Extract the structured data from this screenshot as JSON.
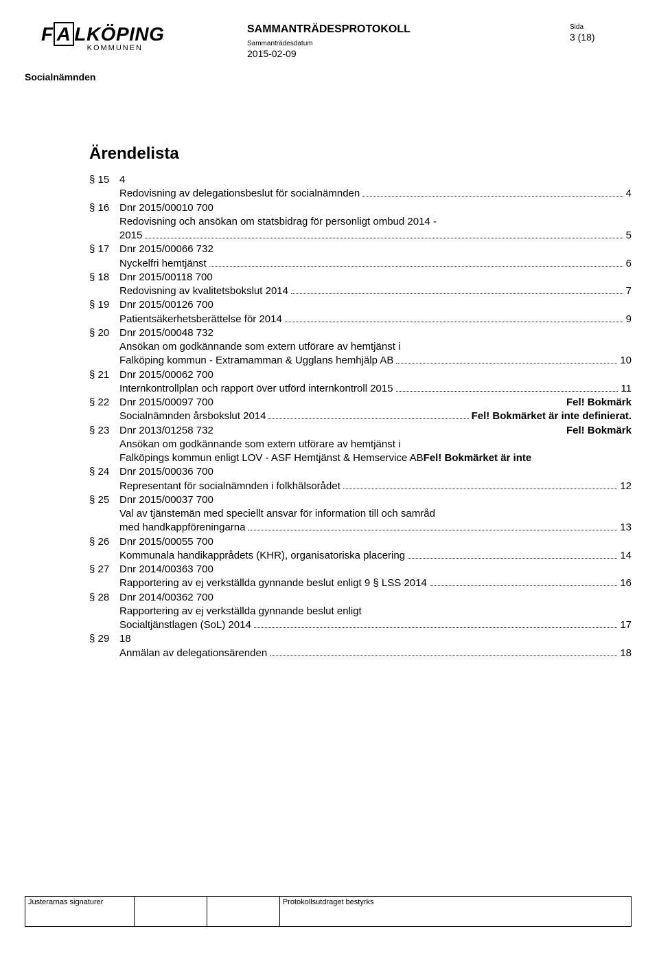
{
  "header": {
    "logo_main_pre": "F",
    "logo_main_a": "A",
    "logo_main_post": "LKÖPING",
    "logo_sub": "KOMMUNEN",
    "protokoll": "SAMMANTRÄDESPROTOKOLL",
    "datum_label": "Sammanträdesdatum",
    "datum": "2015-02-09",
    "sida_label": "Sida",
    "sida": "3 (18)",
    "social": "Socialnämnden"
  },
  "toc_title": "Ärendelista",
  "items": [
    {
      "sec": "§ 15",
      "dnr": "4",
      "title": "Redovisning av delegationsbeslut för socialnämnden",
      "page": "4"
    },
    {
      "sec": "§ 16",
      "dnr": "Dnr 2015/00010 700",
      "title_pre": "Redovisning och ansökan om statsbidrag för personligt ombud 2014 -",
      "title": "2015",
      "page": "5"
    },
    {
      "sec": "§ 17",
      "dnr": "Dnr 2015/00066 732",
      "title": "Nyckelfri hemtjänst",
      "page": "6"
    },
    {
      "sec": "§ 18",
      "dnr": "Dnr 2015/00118 700",
      "title": "Redovisning av kvalitetsbokslut 2014",
      "page": "7"
    },
    {
      "sec": "§ 19",
      "dnr": "Dnr 2015/00126 700",
      "title": "Patientsäkerhetsberättelse för 2014",
      "page": "9"
    },
    {
      "sec": "§ 20",
      "dnr": "Dnr 2015/00048 732",
      "title_pre": "Ansökan om godkännande som extern utförare av hemtjänst i",
      "title": "Falköping kommun - Extramamman & Ugglans hemhjälp AB",
      "page": "10"
    },
    {
      "sec": "§ 21",
      "dnr": "Dnr 2015/00062 700",
      "title": "Internkontrollplan och rapport över utförd internkontroll 2015",
      "page": "11"
    },
    {
      "sec": "§ 22",
      "dnr": "Dnr 2015/00097 700",
      "dnr_suffix_fel": "Fel! Bokmärk",
      "title": "Socialnämnden årsbokslut 2014",
      "page_fel": "Fel! Bokmärket är inte definierat."
    },
    {
      "sec": "§ 23",
      "dnr": "Dnr 2013/01258 732",
      "dnr_suffix_fel": "Fel! Bokmärk",
      "title_pre": "Ansökan om godkännande som extern utförare av hemtjänst i",
      "title": "Falköpings kommun enligt LOV - ASF Hemtjänst & Hemservice AB",
      "page_fel_nosep": "Fel! Bokmärket är inte"
    },
    {
      "sec": "§ 24",
      "dnr": "Dnr 2015/00036 700",
      "title": "Representant för socialnämnden i folkhälsorådet",
      "page": "12"
    },
    {
      "sec": "§ 25",
      "dnr": "Dnr 2015/00037 700",
      "title_pre": "Val av tjänstemän med speciellt ansvar för information till och samråd",
      "title": "med handkappföreningarna",
      "page": "13"
    },
    {
      "sec": "§ 26",
      "dnr": "Dnr 2015/00055 700",
      "title": "Kommunala handikapprådets (KHR), organisatoriska placering",
      "page": "14"
    },
    {
      "sec": "§ 27",
      "dnr": "Dnr 2014/00363 700",
      "title": "Rapportering av ej verkställda gynnande beslut enligt 9 § LSS 2014",
      "page": "16"
    },
    {
      "sec": "§ 28",
      "dnr": "Dnr 2014/00362 700",
      "title_pre": "Rapportering av ej verkställda gynnande beslut enligt",
      "title": "Socialtjänstlagen (SoL) 2014",
      "page": "17"
    },
    {
      "sec": "§ 29",
      "dnr": "18",
      "title": "Anmälan av delegationsärenden",
      "page": "18"
    }
  ],
  "footer": {
    "sign_label": "Justerarnas signaturer",
    "bestyrks": "Protokollsutdraget bestyrks"
  },
  "colors": {
    "text": "#000000",
    "background": "#ffffff",
    "border": "#000000"
  }
}
